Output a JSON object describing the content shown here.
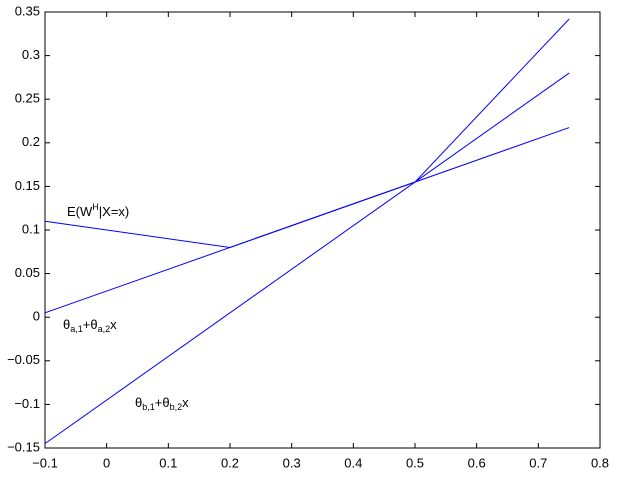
{
  "chart_data": {
    "type": "line",
    "series": [
      {
        "color": "#0000ff",
        "x": [
          -0.1,
          0.2,
          0.5,
          0.75
        ],
        "values": [
          0.11,
          0.08,
          0.155,
          0.342
        ]
      },
      {
        "color": "#0000ff",
        "x": [
          -0.1,
          0.75
        ],
        "values": [
          0.005,
          0.2175
        ]
      },
      {
        "color": "#0000ff",
        "x": [
          -0.1,
          0.75
        ],
        "values": [
          -0.145,
          0.28
        ]
      }
    ],
    "annotations": [
      {
        "parts": [
          "E(W",
          "H",
          "|X=x)"
        ]
      },
      {
        "parts": [
          "θ",
          "a,1",
          "+θ",
          "a,2",
          "x"
        ]
      },
      {
        "parts": [
          "θ",
          "b,1",
          "+θ",
          "b,2",
          "x"
        ]
      }
    ],
    "xlim": [
      -0.1,
      0.8
    ],
    "xticks": [
      {
        "value": -0.1,
        "label": "−0.1"
      },
      0,
      0.1,
      0.2,
      0.3,
      0.4,
      0.5,
      0.6,
      0.7,
      0.8
    ],
    "ylim": [
      -0.15,
      0.35
    ],
    "yticks": [
      {
        "value": -0.15,
        "label": "−0.15"
      },
      {
        "value": -0.1,
        "label": "−0.1"
      },
      {
        "value": -0.05,
        "label": "−0.05"
      },
      0,
      0.05,
      0.1,
      0.15,
      0.2,
      0.25,
      0.3,
      0.35
    ]
  }
}
